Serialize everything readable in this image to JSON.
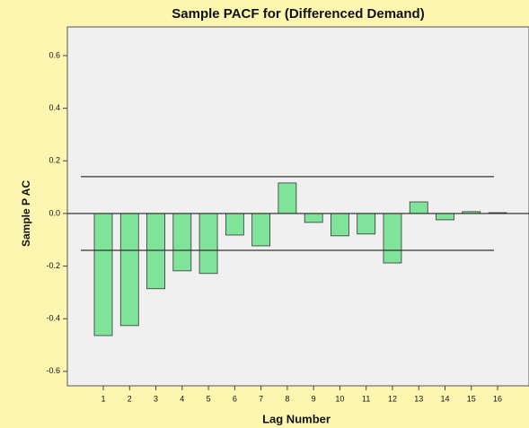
{
  "chart_data": {
    "type": "bar",
    "title": "Sample PACF for (Differenced Demand)",
    "x_label": "Lag Number",
    "y_label": "Sample P AC",
    "categories": [
      "1",
      "2",
      "3",
      "4",
      "5",
      "6",
      "7",
      "8",
      "9",
      "10",
      "11",
      "12",
      "13",
      "14",
      "15",
      "16"
    ],
    "values": [
      -0.464,
      -0.426,
      -0.286,
      -0.218,
      -0.228,
      -0.082,
      -0.123,
      0.116,
      -0.034,
      -0.085,
      -0.078,
      -0.188,
      0.044,
      -0.024,
      0.007,
      0.003
    ],
    "color": "#7fe39a",
    "confidence_limits": {
      "upper": 0.14,
      "lower": -0.14
    },
    "ylim": [
      -0.655,
      0.709
    ],
    "yticks": [
      0.6,
      0.4,
      0.2,
      {
        "value": 0,
        "label": "0.0"
      },
      -0.2,
      -0.4,
      -0.6
    ]
  }
}
